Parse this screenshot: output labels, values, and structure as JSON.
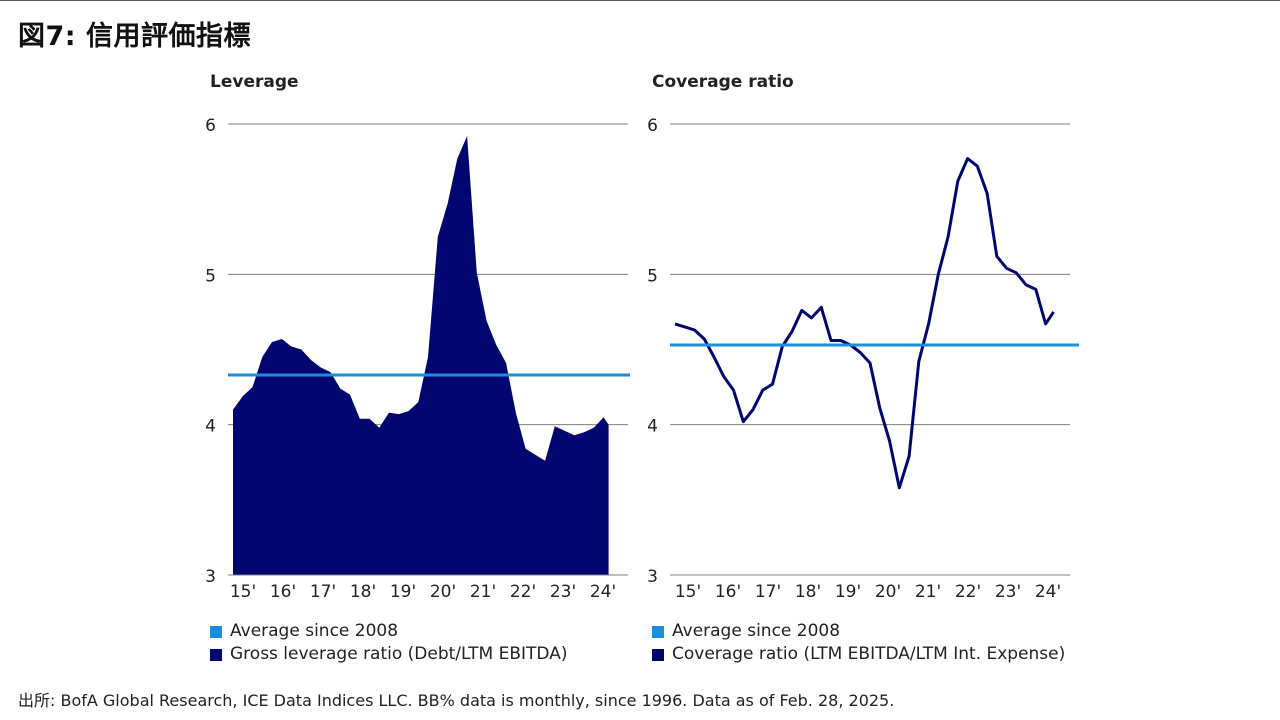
{
  "page_title": "図7: 信用評価指標",
  "source": "出所: BofA Global Research, ICE Data Indices LLC. BB% data is monthly, since 1996. Data as of Feb. 28, 2025.",
  "colors": {
    "average": "#1a8fe0",
    "series": "#020670",
    "grid": "#7f7f7f"
  },
  "chart_data": [
    {
      "type": "area",
      "title": "Leverage",
      "ylim": [
        3,
        6
      ],
      "y_ticks": [
        "3",
        "4",
        "5",
        "6"
      ],
      "x_tick_labels": [
        "15'",
        "16'",
        "17'",
        "18'",
        "19'",
        "20'",
        "21'",
        "22'",
        "23'",
        "24'"
      ],
      "xlim": [
        2015,
        2025.1
      ],
      "average": {
        "name": "Average since 2008",
        "value": 4.33
      },
      "series": {
        "name": "Gross leverage ratio (Debt/LTM EBITDA)",
        "x": [
          2015.0,
          2015.25,
          2015.5,
          2015.75,
          2016.0,
          2016.25,
          2016.5,
          2016.75,
          2017.0,
          2017.25,
          2017.5,
          2017.75,
          2018.0,
          2018.25,
          2018.5,
          2018.75,
          2019.0,
          2019.25,
          2019.5,
          2019.75,
          2020.0,
          2020.25,
          2020.5,
          2020.75,
          2021.0,
          2021.25,
          2021.5,
          2021.75,
          2022.0,
          2022.25,
          2022.5,
          2022.75,
          2023.0,
          2023.25,
          2023.5,
          2023.75,
          2024.0,
          2024.25,
          2024.5
        ],
        "values": [
          4.1,
          4.19,
          4.25,
          4.45,
          4.55,
          4.57,
          4.52,
          4.5,
          4.43,
          4.38,
          4.35,
          4.24,
          4.2,
          4.04,
          4.04,
          3.98,
          4.08,
          4.07,
          4.09,
          4.15,
          4.45,
          5.25,
          5.47,
          5.77,
          5.92,
          5.01,
          4.69,
          4.53,
          4.41,
          4.08,
          3.84,
          3.8,
          3.76,
          3.99,
          3.96,
          3.93,
          3.95,
          3.98,
          4.05
        ]
      }
    },
    {
      "type": "line",
      "title": "Coverage ratio",
      "ylim": [
        3,
        6
      ],
      "y_ticks": [
        "3",
        "4",
        "5",
        "6"
      ],
      "x_tick_labels": [
        "15'",
        "16'",
        "17'",
        "18'",
        "19'",
        "20'",
        "21'",
        "22'",
        "23'",
        "24'"
      ],
      "xlim": [
        2015,
        2025.1
      ],
      "average": {
        "name": "Average since 2008",
        "value": 4.53
      },
      "series": {
        "name": "Coverage ratio (LTM EBITDA/LTM Int. Expense)",
        "x": [
          2015.0,
          2015.25,
          2015.5,
          2015.75,
          2016.0,
          2016.25,
          2016.5,
          2016.75,
          2017.0,
          2017.25,
          2017.5,
          2017.75,
          2018.0,
          2018.25,
          2018.5,
          2018.75,
          2019.0,
          2019.25,
          2019.5,
          2019.75,
          2020.0,
          2020.25,
          2020.5,
          2020.75,
          2021.0,
          2021.25,
          2021.5,
          2021.75,
          2022.0,
          2022.25,
          2022.5,
          2022.75,
          2023.0,
          2023.25,
          2023.5,
          2023.75,
          2024.0,
          2024.25,
          2024.5
        ],
        "values": [
          4.67,
          4.65,
          4.63,
          4.57,
          4.45,
          4.32,
          4.23,
          4.02,
          4.1,
          4.23,
          4.27,
          4.52,
          4.62,
          4.76,
          4.71,
          4.78,
          4.56,
          4.56,
          4.53,
          4.48,
          4.41,
          4.11,
          3.89,
          3.58,
          3.79,
          4.42,
          4.67,
          5.0,
          5.25,
          5.62,
          5.77,
          5.72,
          5.54,
          5.12,
          5.04,
          5.01,
          4.93,
          4.9,
          4.67
        ]
      }
    }
  ]
}
